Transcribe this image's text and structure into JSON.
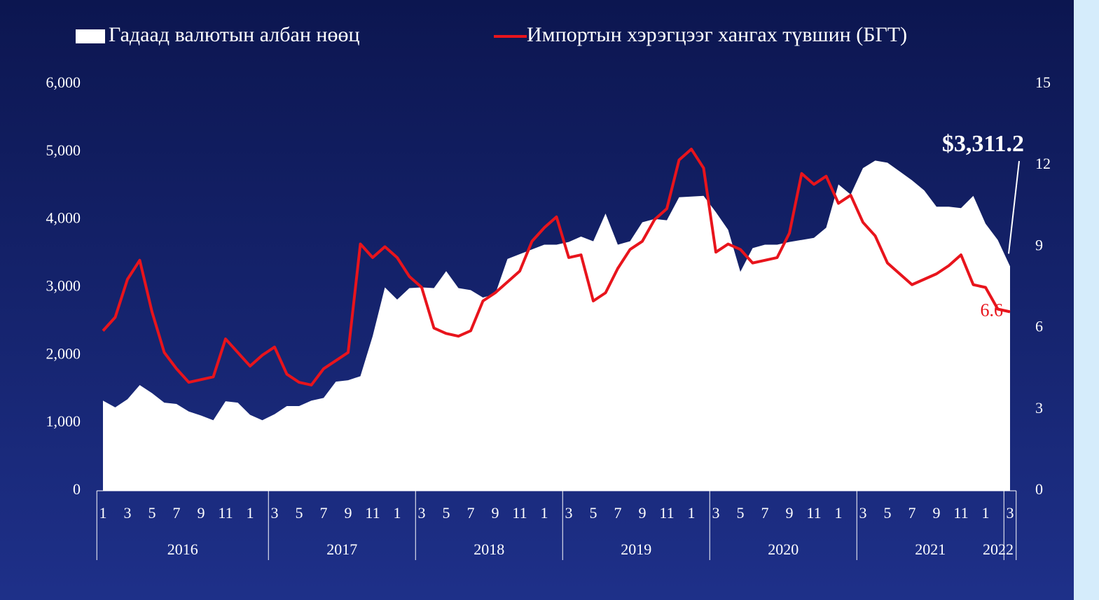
{
  "chart_data": {
    "type": "area-line",
    "categories": [
      "1",
      null,
      "3",
      null,
      "5",
      null,
      "7",
      null,
      "9",
      null,
      "11",
      null,
      "1",
      null,
      "3",
      null,
      "5",
      null,
      "7",
      null,
      "9",
      null,
      "11",
      null,
      "1",
      null,
      "3",
      null,
      "5",
      null,
      "7",
      null,
      "9",
      null,
      "11",
      null,
      "1",
      null,
      "3",
      null,
      "5",
      null,
      "7",
      null,
      "9",
      null,
      "11",
      null,
      "1",
      null,
      "3",
      null,
      "5",
      null,
      "7",
      null,
      "9",
      null,
      "11",
      null,
      "1",
      null,
      "3",
      null,
      "5",
      null,
      "7",
      null,
      "9",
      null,
      "11",
      null,
      "1",
      null,
      "3"
    ],
    "x_groups": [
      {
        "label": "2016",
        "size": 14
      },
      {
        "label": "2017",
        "size": 12
      },
      {
        "label": "2018",
        "size": 12
      },
      {
        "label": "2019",
        "size": 12
      },
      {
        "label": "2020",
        "size": 12
      },
      {
        "label": "2021",
        "size": 12
      },
      {
        "label": "2022",
        "size": 1
      }
    ],
    "series": [
      {
        "name": "Гадаад валютын албан нөөц",
        "type": "area",
        "color": "#ffffff",
        "values": [
          1330,
          1230,
          1350,
          1560,
          1440,
          1300,
          1280,
          1170,
          1110,
          1040,
          1320,
          1300,
          1120,
          1040,
          1130,
          1250,
          1250,
          1330,
          1370,
          1610,
          1630,
          1690,
          2280,
          3000,
          2820,
          2990,
          3000,
          2990,
          3240,
          2990,
          2960,
          2850,
          2900,
          3420,
          3490,
          3560,
          3630,
          3630,
          3670,
          3750,
          3680,
          4090,
          3630,
          3680,
          3960,
          4010,
          3990,
          4330,
          4340,
          4350,
          4110,
          3850,
          3230,
          3580,
          3630,
          3630,
          3670,
          3700,
          3730,
          3880,
          4520,
          4370,
          4760,
          4870,
          4840,
          4710,
          4580,
          4430,
          4190,
          4190,
          4170,
          4350,
          3940,
          3700,
          3311.2
        ],
        "value_labels": [
          null,
          null,
          null,
          null,
          null,
          null,
          null,
          null,
          null,
          null,
          null,
          null,
          null,
          null,
          null,
          null,
          null,
          null,
          null,
          null,
          null,
          null,
          null,
          null,
          null,
          null,
          null,
          null,
          null,
          null,
          null,
          null,
          null,
          null,
          null,
          null,
          null,
          null,
          null,
          null,
          null,
          null,
          null,
          null,
          null,
          null,
          null,
          null,
          null,
          null,
          null,
          null,
          null,
          null,
          null,
          null,
          null,
          null,
          null,
          null,
          null,
          null,
          null,
          null,
          null,
          null,
          null,
          null,
          null,
          null,
          null,
          null,
          null,
          null,
          "$3,311.2"
        ]
      },
      {
        "name": "Импортын хэрэгцээг хангах түвшин (БГТ)",
        "type": "line",
        "color": "#e8141c",
        "axis": "y2",
        "values": [
          5.9,
          6.4,
          7.8,
          8.5,
          6.6,
          5.1,
          4.5,
          4.0,
          4.1,
          4.2,
          5.6,
          5.1,
          4.6,
          5.0,
          5.3,
          4.3,
          4.0,
          3.9,
          4.5,
          4.8,
          5.1,
          9.1,
          8.6,
          9.0,
          8.6,
          7.9,
          7.5,
          6.0,
          5.8,
          5.7,
          5.9,
          7.0,
          7.3,
          7.7,
          8.1,
          9.2,
          9.7,
          10.1,
          8.6,
          8.7,
          7.0,
          7.3,
          8.2,
          8.9,
          9.2,
          10.0,
          10.4,
          12.2,
          12.6,
          11.9,
          8.8,
          9.1,
          8.9,
          8.4,
          8.5,
          8.6,
          9.5,
          11.7,
          11.3,
          11.6,
          10.6,
          10.9,
          9.9,
          9.4,
          8.4,
          8.0,
          7.6,
          7.8,
          8.0,
          8.3,
          8.7,
          7.6,
          7.5,
          6.7,
          6.6
        ]
      }
    ],
    "ylim": [
      0,
      6000
    ],
    "yticks": [
      0,
      {
        "value": 1000,
        "label": "1,000"
      },
      {
        "value": 2000,
        "label": "2,000"
      },
      {
        "value": 3000,
        "label": "3,000"
      },
      {
        "value": 4000,
        "label": "4,000"
      },
      {
        "value": 5000,
        "label": "5,000"
      },
      {
        "value": 6000,
        "label": "6,000"
      }
    ],
    "y2lim": [
      0,
      15
    ],
    "y2ticks": [
      0,
      3,
      6,
      9,
      12,
      15
    ],
    "legend": "top"
  }
}
